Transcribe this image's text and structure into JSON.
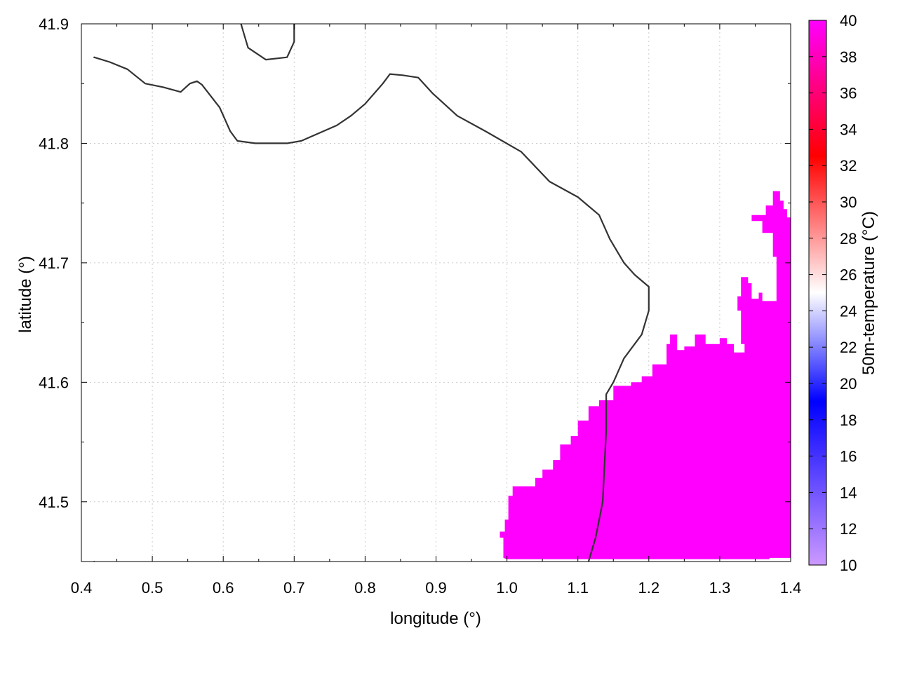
{
  "chart_data": {
    "type": "heatmap",
    "title": "",
    "xlabel": "longitude (°)",
    "ylabel": "latitude (°)",
    "colorbar_label": "50m-temperature (°C)",
    "xlim": [
      0.4,
      1.4
    ],
    "ylim": [
      41.45,
      41.9
    ],
    "x_ticks": [
      "0.4",
      "0.5",
      "0.6",
      "0.7",
      "0.8",
      "0.9",
      "1.0",
      "1.1",
      "1.2",
      "1.3",
      "1.4"
    ],
    "y_ticks": [
      "41.5",
      "41.6",
      "41.7",
      "41.8",
      "41.9"
    ],
    "y_tick_values": [
      41.5,
      41.6,
      41.7,
      41.8,
      41.9
    ],
    "colorbar_range": [
      10,
      40
    ],
    "colorbar_ticks": [
      "10",
      "12",
      "14",
      "16",
      "18",
      "20",
      "22",
      "24",
      "26",
      "28",
      "30",
      "32",
      "34",
      "36",
      "38",
      "40"
    ],
    "colorscale": [
      "#cc99ff",
      "#0000ff",
      "#ffffff",
      "#ff0000",
      "#ff00ff"
    ],
    "grid": true,
    "filled_region": {
      "value_celsius": 40,
      "color": "#ff00ff",
      "outline": [
        [
          0.995,
          41.453
        ],
        [
          0.995,
          41.47
        ],
        [
          0.99,
          41.47
        ],
        [
          0.99,
          41.475
        ],
        [
          0.997,
          41.475
        ],
        [
          0.997,
          41.485
        ],
        [
          1.002,
          41.485
        ],
        [
          1.002,
          41.505
        ],
        [
          1.008,
          41.505
        ],
        [
          1.008,
          41.513
        ],
        [
          1.04,
          41.513
        ],
        [
          1.04,
          41.52
        ],
        [
          1.05,
          41.52
        ],
        [
          1.05,
          41.527
        ],
        [
          1.065,
          41.527
        ],
        [
          1.065,
          41.535
        ],
        [
          1.075,
          41.535
        ],
        [
          1.075,
          41.548
        ],
        [
          1.09,
          41.548
        ],
        [
          1.09,
          41.555
        ],
        [
          1.1,
          41.555
        ],
        [
          1.1,
          41.568
        ],
        [
          1.115,
          41.568
        ],
        [
          1.115,
          41.58
        ],
        [
          1.13,
          41.58
        ],
        [
          1.13,
          41.585
        ],
        [
          1.15,
          41.585
        ],
        [
          1.15,
          41.597
        ],
        [
          1.175,
          41.597
        ],
        [
          1.175,
          41.6
        ],
        [
          1.19,
          41.6
        ],
        [
          1.19,
          41.605
        ],
        [
          1.205,
          41.605
        ],
        [
          1.205,
          41.615
        ],
        [
          1.225,
          41.615
        ],
        [
          1.225,
          41.632
        ],
        [
          1.23,
          41.632
        ],
        [
          1.23,
          41.64
        ],
        [
          1.24,
          41.64
        ],
        [
          1.24,
          41.627
        ],
        [
          1.25,
          41.627
        ],
        [
          1.25,
          41.63
        ],
        [
          1.265,
          41.63
        ],
        [
          1.265,
          41.64
        ],
        [
          1.28,
          41.64
        ],
        [
          1.28,
          41.632
        ],
        [
          1.3,
          41.632
        ],
        [
          1.3,
          41.637
        ],
        [
          1.31,
          41.637
        ],
        [
          1.31,
          41.632
        ],
        [
          1.32,
          41.632
        ],
        [
          1.32,
          41.625
        ],
        [
          1.335,
          41.625
        ],
        [
          1.335,
          41.632
        ],
        [
          1.33,
          41.632
        ],
        [
          1.33,
          41.66
        ],
        [
          1.325,
          41.66
        ],
        [
          1.325,
          41.672
        ],
        [
          1.33,
          41.672
        ],
        [
          1.33,
          41.688
        ],
        [
          1.34,
          41.688
        ],
        [
          1.34,
          41.683
        ],
        [
          1.345,
          41.683
        ],
        [
          1.345,
          41.67
        ],
        [
          1.355,
          41.67
        ],
        [
          1.355,
          41.675
        ],
        [
          1.36,
          41.675
        ],
        [
          1.36,
          41.668
        ],
        [
          1.38,
          41.668
        ],
        [
          1.38,
          41.705
        ],
        [
          1.375,
          41.705
        ],
        [
          1.375,
          41.725
        ],
        [
          1.36,
          41.725
        ],
        [
          1.36,
          41.735
        ],
        [
          1.345,
          41.735
        ],
        [
          1.345,
          41.74
        ],
        [
          1.365,
          41.74
        ],
        [
          1.365,
          41.748
        ],
        [
          1.375,
          41.748
        ],
        [
          1.375,
          41.76
        ],
        [
          1.385,
          41.76
        ],
        [
          1.385,
          41.752
        ],
        [
          1.39,
          41.752
        ],
        [
          1.39,
          41.745
        ],
        [
          1.395,
          41.745
        ],
        [
          1.395,
          41.738
        ],
        [
          1.4,
          41.738
        ],
        [
          1.4,
          41.453
        ],
        [
          1.37,
          41.453
        ],
        [
          1.37,
          41.452
        ],
        [
          1.0,
          41.452
        ]
      ]
    },
    "contours": [
      [
        [
          0.418,
          41.872
        ],
        [
          0.44,
          41.868
        ],
        [
          0.465,
          41.862
        ],
        [
          0.49,
          41.85
        ],
        [
          0.515,
          41.847
        ],
        [
          0.54,
          41.843
        ],
        [
          0.553,
          41.85
        ],
        [
          0.563,
          41.852
        ],
        [
          0.57,
          41.849
        ],
        [
          0.595,
          41.83
        ],
        [
          0.61,
          41.81
        ],
        [
          0.62,
          41.802
        ],
        [
          0.645,
          41.8
        ],
        [
          0.665,
          41.8
        ],
        [
          0.69,
          41.8
        ],
        [
          0.71,
          41.802
        ],
        [
          0.76,
          41.815
        ],
        [
          0.78,
          41.823
        ],
        [
          0.8,
          41.833
        ],
        [
          0.825,
          41.85
        ],
        [
          0.835,
          41.858
        ],
        [
          0.853,
          41.857
        ],
        [
          0.875,
          41.855
        ],
        [
          0.895,
          41.842
        ],
        [
          0.93,
          41.823
        ],
        [
          0.97,
          41.81
        ],
        [
          1.02,
          41.793
        ],
        [
          1.06,
          41.768
        ],
        [
          1.1,
          41.755
        ],
        [
          1.13,
          41.74
        ],
        [
          1.145,
          41.72
        ],
        [
          1.165,
          41.7
        ],
        [
          1.18,
          41.69
        ],
        [
          1.2,
          41.68
        ],
        [
          1.2,
          41.66
        ],
        [
          1.19,
          41.64
        ],
        [
          1.165,
          41.62
        ],
        [
          1.15,
          41.6
        ],
        [
          1.14,
          41.59
        ],
        [
          1.14,
          41.56
        ],
        [
          1.135,
          41.5
        ],
        [
          1.125,
          41.47
        ],
        [
          1.115,
          41.45
        ],
        [
          1.085,
          41.44
        ],
        [
          1.05,
          41.42
        ],
        [
          1.01,
          41.4
        ],
        [
          0.95,
          41.38
        ],
        [
          0.9,
          41.37
        ],
        [
          0.85,
          41.37
        ],
        [
          0.8,
          41.372
        ],
        [
          0.75,
          41.38
        ],
        [
          0.7,
          41.385
        ],
        [
          0.65,
          41.385
        ],
        [
          0.6,
          41.39
        ],
        [
          0.55,
          41.4
        ],
        [
          0.5,
          41.41
        ],
        [
          0.45,
          41.43
        ],
        [
          0.418,
          41.45
        ]
      ],
      [
        [
          0.625,
          41.9
        ],
        [
          0.63,
          41.89
        ],
        [
          0.635,
          41.88
        ],
        [
          0.66,
          41.87
        ],
        [
          0.69,
          41.872
        ],
        [
          0.7,
          41.885
        ],
        [
          0.7,
          41.9
        ]
      ]
    ]
  }
}
